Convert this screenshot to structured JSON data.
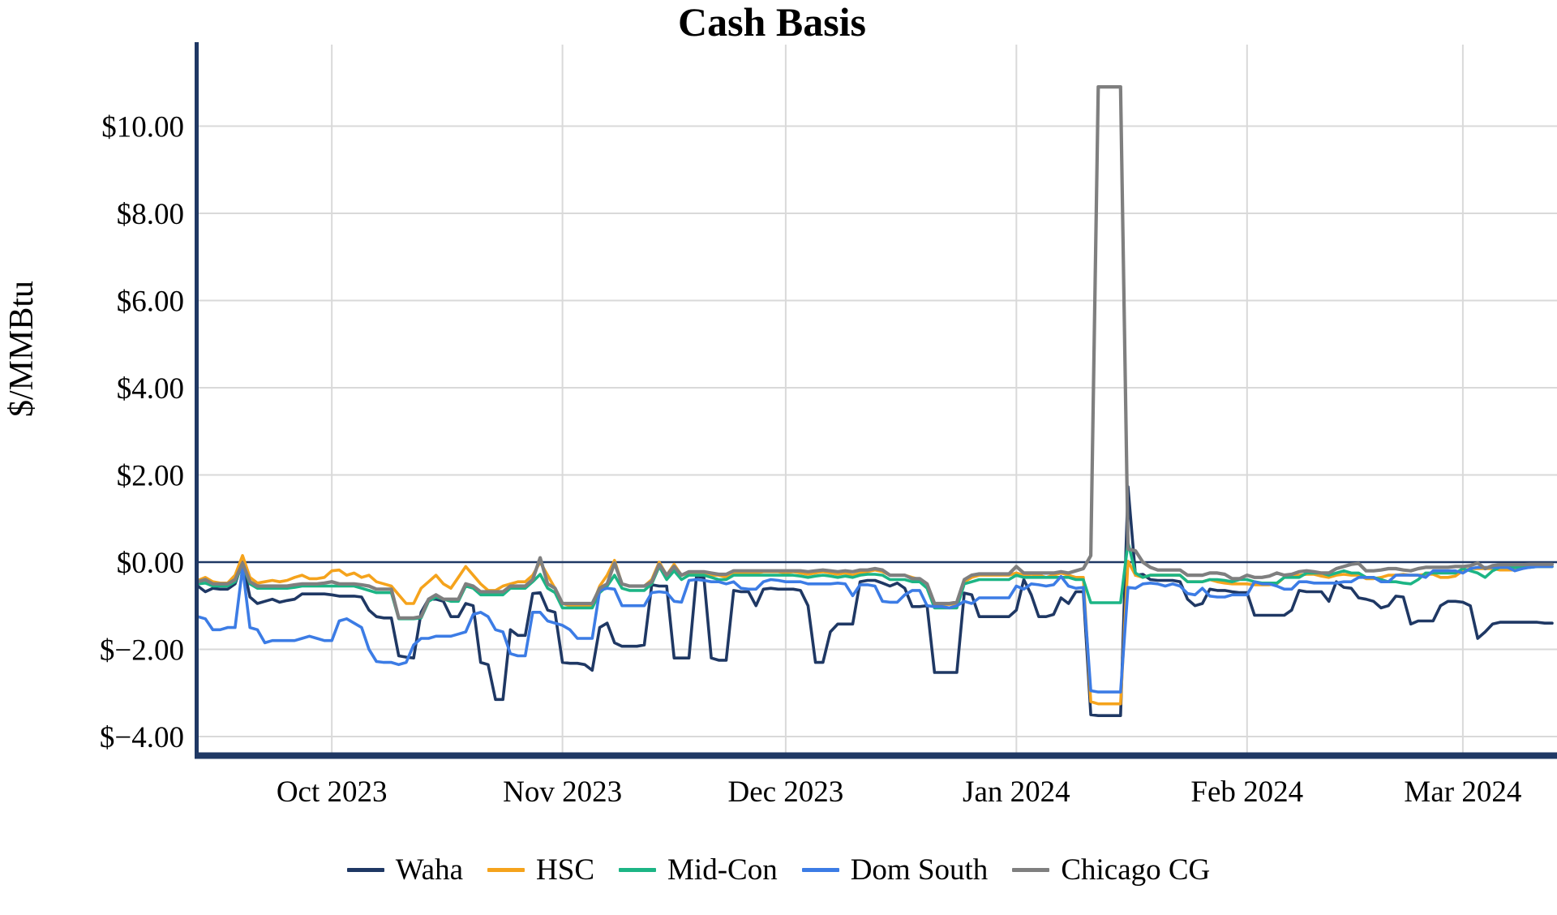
{
  "page": {
    "title": "Cash Basis"
  },
  "chart_data": {
    "type": "line",
    "title": "Cash Basis",
    "ylabel": "$/MMBtu",
    "xlabel": "",
    "x_unit": "day",
    "x_count": 183,
    "x_range_note": "daily values from mid-September 2023 through mid-March 2024",
    "grid": true,
    "zero_line": true,
    "legend_position": "bottom",
    "ylim": [
      -4.41,
      11.87
    ],
    "colors": {
      "axis": "#1f3864",
      "grid": "#d9d9d9",
      "zero_line": "#1f3864"
    },
    "y_ticks": [
      {
        "value": 10,
        "label": "$10.00"
      },
      {
        "value": 8,
        "label": "$8.00"
      },
      {
        "value": 6,
        "label": "$6.00"
      },
      {
        "value": 4,
        "label": "$4.00"
      },
      {
        "value": 2,
        "label": "$2.00"
      },
      {
        "value": 0,
        "label": "$0.00"
      },
      {
        "value": -2,
        "label": "$−2.00"
      },
      {
        "value": -4,
        "label": "$−4.00"
      }
    ],
    "x_ticks": [
      {
        "index": 18,
        "label": "Oct 2023"
      },
      {
        "index": 49,
        "label": "Nov 2023"
      },
      {
        "index": 79,
        "label": "Dec 2023"
      },
      {
        "index": 110,
        "label": "Jan 2024"
      },
      {
        "index": 141,
        "label": "Feb 2024"
      },
      {
        "index": 170,
        "label": "Mar 2024"
      }
    ],
    "series": [
      {
        "name": "Waha",
        "color": "#1f3864",
        "values": [
          -0.55,
          -0.68,
          -0.6,
          -0.62,
          -0.62,
          -0.5,
          0.0,
          -0.8,
          -0.95,
          -0.9,
          -0.85,
          -0.92,
          -0.88,
          -0.85,
          -0.73,
          -0.73,
          -0.73,
          -0.73,
          -0.75,
          -0.78,
          -0.78,
          -0.78,
          -0.8,
          -1.1,
          -1.25,
          -1.28,
          -1.28,
          -2.15,
          -2.18,
          -2.2,
          -1.15,
          -0.85,
          -0.85,
          -0.9,
          -1.25,
          -1.25,
          -0.95,
          -1.0,
          -2.3,
          -2.35,
          -3.15,
          -3.15,
          -1.55,
          -1.68,
          -1.68,
          -0.72,
          -0.7,
          -1.1,
          -1.15,
          -2.3,
          -2.32,
          -2.32,
          -2.35,
          -2.48,
          -1.5,
          -1.4,
          -1.85,
          -1.93,
          -1.93,
          -1.93,
          -1.9,
          -0.52,
          -0.55,
          -0.55,
          -2.2,
          -2.2,
          -2.2,
          -0.33,
          -0.35,
          -2.2,
          -2.25,
          -2.25,
          -0.65,
          -0.68,
          -0.68,
          -1.0,
          -0.62,
          -0.6,
          -0.62,
          -0.62,
          -0.62,
          -0.65,
          -1.0,
          -2.3,
          -2.3,
          -1.6,
          -1.42,
          -1.42,
          -1.42,
          -0.45,
          -0.42,
          -0.42,
          -0.48,
          -0.55,
          -0.48,
          -0.6,
          -1.02,
          -1.02,
          -1.0,
          -2.53,
          -2.53,
          -2.53,
          -2.53,
          -0.71,
          -0.75,
          -1.25,
          -1.25,
          -1.25,
          -1.25,
          -1.25,
          -1.1,
          -0.4,
          -0.75,
          -1.25,
          -1.25,
          -1.2,
          -0.82,
          -0.95,
          -0.68,
          -0.68,
          -3.5,
          -3.52,
          -3.52,
          -3.52,
          -3.52,
          1.73,
          -0.3,
          -0.28,
          -0.4,
          -0.42,
          -0.42,
          -0.42,
          -0.45,
          -0.85,
          -1.0,
          -0.95,
          -0.62,
          -0.65,
          -0.65,
          -0.68,
          -0.7,
          -0.7,
          -1.22,
          -1.22,
          -1.22,
          -1.22,
          -1.22,
          -1.1,
          -0.65,
          -0.68,
          -0.68,
          -0.68,
          -0.9,
          -0.45,
          -0.58,
          -0.6,
          -0.82,
          -0.85,
          -0.9,
          -1.05,
          -1.0,
          -0.78,
          -0.8,
          -1.42,
          -1.35,
          -1.35,
          -1.35,
          -1.0,
          -0.9,
          -0.9,
          -0.92,
          -1.0,
          -1.75,
          -1.6,
          -1.42,
          -1.38,
          -1.38,
          -1.38,
          -1.38,
          -1.38,
          -1.38,
          -1.4,
          -1.4
        ]
      },
      {
        "name": "HSC",
        "color": "#f5a31c",
        "values": [
          -0.42,
          -0.35,
          -0.45,
          -0.48,
          -0.48,
          -0.3,
          0.15,
          -0.35,
          -0.48,
          -0.45,
          -0.42,
          -0.45,
          -0.42,
          -0.35,
          -0.3,
          -0.38,
          -0.38,
          -0.35,
          -0.2,
          -0.18,
          -0.3,
          -0.25,
          -0.35,
          -0.3,
          -0.45,
          -0.5,
          -0.55,
          -0.75,
          -0.95,
          -0.95,
          -0.6,
          -0.45,
          -0.3,
          -0.5,
          -0.6,
          -0.35,
          -0.1,
          -0.3,
          -0.5,
          -0.65,
          -0.65,
          -0.55,
          -0.5,
          -0.45,
          -0.45,
          -0.3,
          0.0,
          -0.3,
          -0.6,
          -0.95,
          -1.0,
          -1.0,
          -1.0,
          -1.0,
          -0.55,
          -0.3,
          0.04,
          -0.5,
          -0.55,
          -0.55,
          -0.55,
          -0.4,
          0.0,
          -0.3,
          -0.05,
          -0.3,
          -0.25,
          -0.25,
          -0.25,
          -0.3,
          -0.3,
          -0.35,
          -0.25,
          -0.25,
          -0.25,
          -0.25,
          -0.22,
          -0.22,
          -0.22,
          -0.25,
          -0.22,
          -0.25,
          -0.28,
          -0.25,
          -0.22,
          -0.25,
          -0.28,
          -0.25,
          -0.3,
          -0.25,
          -0.22,
          -0.18,
          -0.22,
          -0.3,
          -0.3,
          -0.3,
          -0.35,
          -0.4,
          -0.5,
          -0.97,
          -0.97,
          -0.97,
          -0.95,
          -0.45,
          -0.35,
          -0.3,
          -0.3,
          -0.3,
          -0.3,
          -0.3,
          -0.25,
          -0.3,
          -0.28,
          -0.3,
          -0.35,
          -0.3,
          -0.25,
          -0.3,
          -0.35,
          -0.35,
          -3.2,
          -3.25,
          -3.25,
          -3.25,
          -3.25,
          0.02,
          -0.3,
          -0.35,
          -0.3,
          -0.3,
          -0.3,
          -0.3,
          -0.3,
          -0.45,
          -0.45,
          -0.45,
          -0.4,
          -0.45,
          -0.48,
          -0.5,
          -0.5,
          -0.5,
          -0.52,
          -0.52,
          -0.52,
          -0.5,
          -0.35,
          -0.3,
          -0.3,
          -0.28,
          -0.28,
          -0.32,
          -0.35,
          -0.3,
          -0.28,
          -0.3,
          -0.3,
          -0.38,
          -0.38,
          -0.35,
          -0.3,
          -0.3,
          -0.28,
          -0.3,
          -0.3,
          -0.28,
          -0.28,
          -0.35,
          -0.35,
          -0.32,
          -0.2,
          -0.15,
          -0.15,
          -0.15,
          -0.15,
          -0.18,
          -0.18,
          -0.18,
          -0.15,
          -0.1,
          -0.1,
          -0.1,
          -0.1
        ]
      },
      {
        "name": "Mid-Con",
        "color": "#1cb585",
        "values": [
          -0.5,
          -0.48,
          -0.55,
          -0.55,
          -0.55,
          -0.45,
          -0.05,
          -0.5,
          -0.6,
          -0.6,
          -0.6,
          -0.6,
          -0.6,
          -0.58,
          -0.55,
          -0.55,
          -0.55,
          -0.55,
          -0.55,
          -0.55,
          -0.55,
          -0.55,
          -0.6,
          -0.65,
          -0.7,
          -0.7,
          -0.7,
          -1.3,
          -1.3,
          -1.3,
          -1.28,
          -0.9,
          -0.8,
          -0.85,
          -0.9,
          -0.9,
          -0.55,
          -0.6,
          -0.75,
          -0.75,
          -0.75,
          -0.75,
          -0.6,
          -0.6,
          -0.6,
          -0.45,
          -0.28,
          -0.6,
          -0.7,
          -1.05,
          -1.05,
          -1.05,
          -1.05,
          -1.05,
          -0.7,
          -0.55,
          -0.3,
          -0.6,
          -0.65,
          -0.65,
          -0.65,
          -0.5,
          -0.1,
          -0.4,
          -0.2,
          -0.4,
          -0.3,
          -0.3,
          -0.3,
          -0.35,
          -0.4,
          -0.4,
          -0.3,
          -0.3,
          -0.3,
          -0.3,
          -0.3,
          -0.3,
          -0.3,
          -0.3,
          -0.3,
          -0.32,
          -0.35,
          -0.32,
          -0.3,
          -0.32,
          -0.35,
          -0.32,
          -0.35,
          -0.3,
          -0.28,
          -0.28,
          -0.3,
          -0.4,
          -0.4,
          -0.4,
          -0.45,
          -0.45,
          -0.6,
          -1.05,
          -1.05,
          -1.05,
          -1.05,
          -0.5,
          -0.45,
          -0.4,
          -0.4,
          -0.4,
          -0.4,
          -0.4,
          -0.3,
          -0.35,
          -0.35,
          -0.35,
          -0.35,
          -0.35,
          -0.35,
          -0.35,
          -0.4,
          -0.4,
          -0.93,
          -0.93,
          -0.93,
          -0.93,
          -0.93,
          0.45,
          -0.25,
          -0.35,
          -0.3,
          -0.3,
          -0.3,
          -0.3,
          -0.3,
          -0.45,
          -0.45,
          -0.45,
          -0.4,
          -0.4,
          -0.42,
          -0.45,
          -0.4,
          -0.4,
          -0.45,
          -0.48,
          -0.48,
          -0.48,
          -0.35,
          -0.35,
          -0.35,
          -0.25,
          -0.25,
          -0.25,
          -0.3,
          -0.25,
          -0.2,
          -0.25,
          -0.25,
          -0.35,
          -0.35,
          -0.4,
          -0.45,
          -0.45,
          -0.48,
          -0.5,
          -0.4,
          -0.25,
          -0.25,
          -0.25,
          -0.25,
          -0.25,
          -0.15,
          -0.2,
          -0.25,
          -0.35,
          -0.2,
          -0.12,
          -0.12,
          -0.12,
          -0.12,
          -0.12,
          -0.1,
          -0.1,
          -0.1
        ]
      },
      {
        "name": "Dom South",
        "color": "#3c7ce5",
        "values": [
          -1.25,
          -1.3,
          -1.55,
          -1.55,
          -1.5,
          -1.5,
          -0.12,
          -1.5,
          -1.55,
          -1.85,
          -1.8,
          -1.8,
          -1.8,
          -1.8,
          -1.75,
          -1.7,
          -1.75,
          -1.8,
          -1.8,
          -1.35,
          -1.3,
          -1.4,
          -1.5,
          -2.0,
          -2.28,
          -2.3,
          -2.3,
          -2.35,
          -2.3,
          -1.9,
          -1.75,
          -1.75,
          -1.7,
          -1.7,
          -1.7,
          -1.65,
          -1.6,
          -1.2,
          -1.15,
          -1.25,
          -1.55,
          -1.6,
          -2.1,
          -2.15,
          -2.15,
          -1.15,
          -1.15,
          -1.35,
          -1.4,
          -1.45,
          -1.55,
          -1.75,
          -1.75,
          -1.75,
          -0.65,
          -0.6,
          -0.62,
          -1.0,
          -1.0,
          -1.0,
          -1.0,
          -0.7,
          -0.68,
          -0.7,
          -0.9,
          -0.92,
          -0.42,
          -0.4,
          -0.42,
          -0.45,
          -0.45,
          -0.5,
          -0.45,
          -0.6,
          -0.62,
          -0.62,
          -0.45,
          -0.4,
          -0.42,
          -0.45,
          -0.45,
          -0.45,
          -0.5,
          -0.5,
          -0.5,
          -0.5,
          -0.48,
          -0.5,
          -0.77,
          -0.52,
          -0.52,
          -0.55,
          -0.9,
          -0.92,
          -0.92,
          -0.75,
          -0.65,
          -0.65,
          -1.0,
          -1.02,
          -1.02,
          -1.05,
          -1.0,
          -0.9,
          -0.95,
          -0.82,
          -0.82,
          -0.82,
          -0.82,
          -0.82,
          -0.55,
          -0.62,
          -0.5,
          -0.52,
          -0.55,
          -0.52,
          -0.33,
          -0.55,
          -0.6,
          -0.58,
          -2.95,
          -2.98,
          -2.98,
          -2.98,
          -2.98,
          -0.58,
          -0.6,
          -0.5,
          -0.48,
          -0.5,
          -0.55,
          -0.5,
          -0.55,
          -0.72,
          -0.75,
          -0.6,
          -0.78,
          -0.8,
          -0.8,
          -0.75,
          -0.75,
          -0.75,
          -0.45,
          -0.5,
          -0.5,
          -0.55,
          -0.62,
          -0.62,
          -0.45,
          -0.45,
          -0.48,
          -0.48,
          -0.48,
          -0.48,
          -0.45,
          -0.45,
          -0.35,
          -0.35,
          -0.35,
          -0.45,
          -0.45,
          -0.3,
          -0.3,
          -0.3,
          -0.3,
          -0.35,
          -0.2,
          -0.2,
          -0.2,
          -0.2,
          -0.25,
          -0.15,
          -0.12,
          -0.12,
          -0.12,
          -0.12,
          -0.12,
          -0.2,
          -0.15,
          -0.12,
          -0.1,
          -0.1,
          -0.1
        ]
      },
      {
        "name": "Chicago CG",
        "color": "#7f7f7f",
        "values": [
          -0.45,
          -0.4,
          -0.5,
          -0.5,
          -0.5,
          -0.4,
          -0.02,
          -0.45,
          -0.55,
          -0.55,
          -0.55,
          -0.55,
          -0.55,
          -0.52,
          -0.5,
          -0.5,
          -0.5,
          -0.48,
          -0.45,
          -0.5,
          -0.5,
          -0.5,
          -0.52,
          -0.55,
          -0.62,
          -0.62,
          -0.62,
          -1.28,
          -1.28,
          -1.28,
          -1.25,
          -0.85,
          -0.75,
          -0.85,
          -0.85,
          -0.85,
          -0.5,
          -0.55,
          -0.68,
          -0.68,
          -0.68,
          -0.68,
          -0.55,
          -0.55,
          -0.55,
          -0.4,
          0.1,
          -0.5,
          -0.6,
          -0.95,
          -0.95,
          -0.95,
          -0.95,
          -0.95,
          -0.6,
          -0.5,
          -0.02,
          -0.5,
          -0.55,
          -0.55,
          -0.55,
          -0.45,
          -0.05,
          -0.3,
          -0.1,
          -0.3,
          -0.22,
          -0.22,
          -0.22,
          -0.25,
          -0.28,
          -0.28,
          -0.2,
          -0.2,
          -0.2,
          -0.2,
          -0.2,
          -0.2,
          -0.2,
          -0.2,
          -0.2,
          -0.2,
          -0.22,
          -0.2,
          -0.18,
          -0.2,
          -0.22,
          -0.2,
          -0.22,
          -0.18,
          -0.18,
          -0.15,
          -0.18,
          -0.3,
          -0.3,
          -0.3,
          -0.38,
          -0.38,
          -0.5,
          -0.95,
          -0.95,
          -0.95,
          -0.92,
          -0.4,
          -0.3,
          -0.27,
          -0.27,
          -0.27,
          -0.27,
          -0.27,
          -0.1,
          -0.25,
          -0.25,
          -0.25,
          -0.25,
          -0.25,
          -0.22,
          -0.25,
          -0.2,
          -0.15,
          0.15,
          10.9,
          10.9,
          10.9,
          10.9,
          0.3,
          0.26,
          0.0,
          -0.12,
          -0.18,
          -0.18,
          -0.18,
          -0.18,
          -0.3,
          -0.3,
          -0.3,
          -0.25,
          -0.25,
          -0.28,
          -0.38,
          -0.38,
          -0.3,
          -0.35,
          -0.35,
          -0.32,
          -0.25,
          -0.3,
          -0.28,
          -0.22,
          -0.2,
          -0.22,
          -0.25,
          -0.25,
          -0.15,
          -0.1,
          -0.05,
          -0.03,
          -0.2,
          -0.2,
          -0.18,
          -0.15,
          -0.15,
          -0.18,
          -0.2,
          -0.15,
          -0.12,
          -0.12,
          -0.12,
          -0.12,
          -0.1,
          -0.1,
          -0.08,
          -0.02,
          -0.15,
          -0.08,
          -0.06,
          -0.06,
          -0.06,
          -0.06,
          -0.05,
          -0.05,
          -0.05,
          -0.05
        ]
      }
    ]
  }
}
